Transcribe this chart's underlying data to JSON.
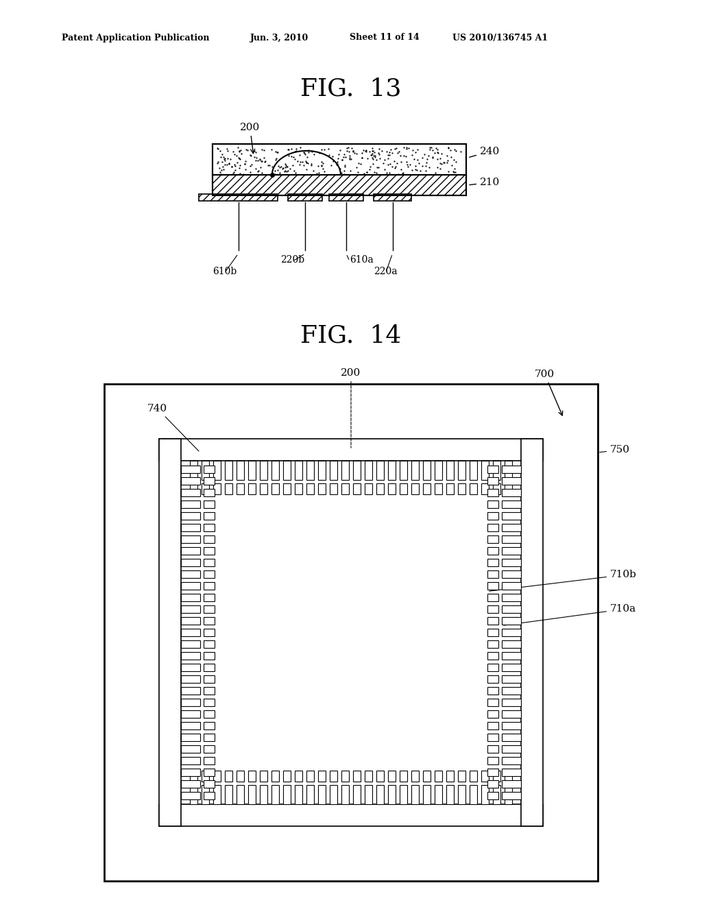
{
  "bg_color": "#ffffff",
  "header_text": "Patent Application Publication",
  "header_date": "Jun. 3, 2010",
  "header_sheet": "Sheet 11 of 14",
  "header_patent": "US 2010/136745 A1",
  "fig13_title": "FIG.  13",
  "fig14_title": "FIG.  14"
}
